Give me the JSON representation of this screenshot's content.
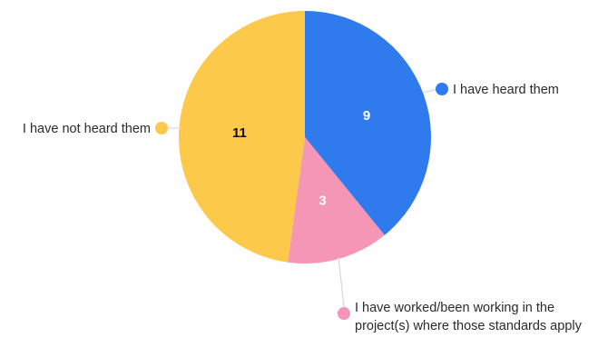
{
  "chart_data": {
    "type": "pie",
    "slices": [
      {
        "label": "I have heard them",
        "value": 9,
        "color": "#2f7bee",
        "label_color": "#ffffff"
      },
      {
        "label": "I have worked/been working in the project(s) where those standards apply",
        "label_lines": [
          "I have worked/been working in the",
          "project(s) where those standards apply"
        ],
        "value": 3,
        "color": "#f596b6",
        "label_color": "#ffffff"
      },
      {
        "label": "I have not heard them",
        "value": 11,
        "color": "#fcc94a",
        "label_color": "#111111"
      }
    ],
    "start_angle_deg": 0,
    "direction": "clockwise",
    "leader_line_color": "#d9d9d9"
  }
}
